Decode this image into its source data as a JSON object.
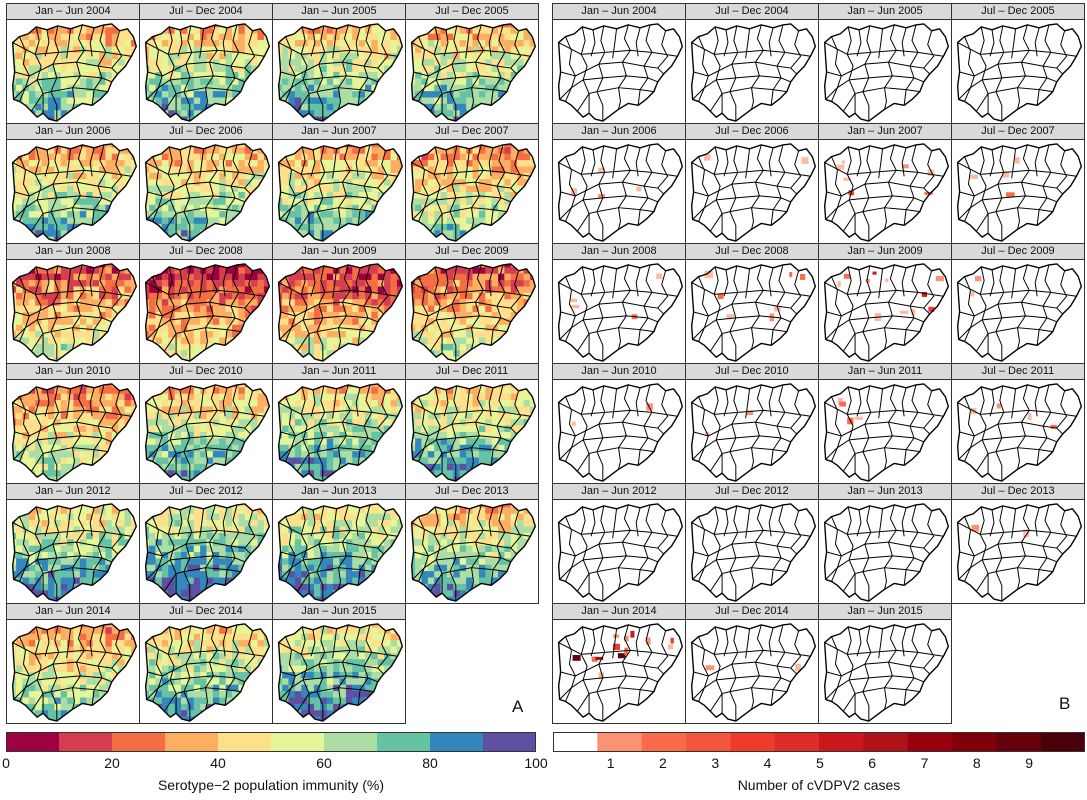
{
  "panel_a": {
    "letter": "A",
    "legend_title": "Serotype−2 population immunity (%)",
    "legend_ticks": [
      "0",
      "20",
      "40",
      "60",
      "80",
      "100"
    ],
    "legend_colors": [
      "#9e0142",
      "#d53e4f",
      "#f46d43",
      "#fdae61",
      "#fee08b",
      "#e6f598",
      "#abdda4",
      "#66c2a5",
      "#3288bd",
      "#5e4fa2"
    ]
  },
  "panel_b": {
    "letter": "B",
    "legend_title": "Number of cVDPV2 cases",
    "legend_ticks": [
      "1",
      "2",
      "3",
      "4",
      "5",
      "6",
      "7",
      "8",
      "9"
    ],
    "legend_colors": [
      "#ffffff",
      "#fc9272",
      "#fb6a4a",
      "#f4553d",
      "#ef3b2c",
      "#de2d26",
      "#cb181d",
      "#b11218",
      "#99000d",
      "#7f0008",
      "#67000d",
      "#4a0008"
    ]
  },
  "periods": [
    "Jan – Jun 2004",
    "Jul – Dec 2004",
    "Jan – Jun 2005",
    "Jul – Dec 2005",
    "Jan – Jun 2006",
    "Jul – Dec 2006",
    "Jan – Jun 2007",
    "Jul – Dec 2007",
    "Jan – Jun 2008",
    "Jul – Dec 2008",
    "Jan – Jun 2009",
    "Jul – Dec 2009",
    "Jan – Jun 2010",
    "Jul – Dec 2010",
    "Jan – Jun 2011",
    "Jul – Dec 2011",
    "Jan – Jun 2012",
    "Jul – Dec 2012",
    "Jan – Jun 2013",
    "Jul – Dec 2013",
    "Jan – Jun 2014",
    "Jul – Dec 2014",
    "Jan – Jun 2015"
  ],
  "chart_data": [
    {
      "type": "heatmap",
      "panel": "A",
      "ylabel": "",
      "legend_label": "Serotype−2 population immunity (%)",
      "scale": [
        0,
        100
      ],
      "immunity_level_by_period": {
        "Jan – Jun 2004": 55,
        "Jul – Dec 2004": 58,
        "Jan – Jun 2005": 60,
        "Jul – Dec 2005": 58,
        "Jan – Jun 2006": 57,
        "Jul – Dec 2006": 55,
        "Jan – Jun 2007": 55,
        "Jul – Dec 2007": 48,
        "Jan – Jun 2008": 38,
        "Jul – Dec 2008": 30,
        "Jan – Jun 2009": 32,
        "Jul – Dec 2009": 38,
        "Jan – Jun 2010": 45,
        "Jul – Dec 2010": 58,
        "Jan – Jun 2011": 62,
        "Jul – Dec 2011": 62,
        "Jan – Jun 2012": 65,
        "Jul – Dec 2012": 70,
        "Jan – Jun 2013": 68,
        "Jul – Dec 2013": 60,
        "Jan – Jun 2014": 52,
        "Jul – Dec 2014": 62,
        "Jan – Jun 2015": 68
      }
    },
    {
      "type": "heatmap",
      "panel": "B",
      "legend_label": "Number of cVDPV2 cases",
      "scale": [
        0,
        9
      ],
      "case_intensity_by_period": {
        "Jan – Jun 2004": 0,
        "Jul – Dec 2004": 0,
        "Jan – Jun 2005": 0,
        "Jul – Dec 2005": 0,
        "Jan – Jun 2006": 2,
        "Jul – Dec 2006": 1,
        "Jan – Jun 2007": 3,
        "Jul – Dec 2007": 2,
        "Jan – Jun 2008": 2,
        "Jul – Dec 2008": 3,
        "Jan – Jun 2009": 5,
        "Jul – Dec 2009": 1,
        "Jan – Jun 2010": 1,
        "Jul – Dec 2010": 1,
        "Jan – Jun 2011": 2,
        "Jul – Dec 2011": 2,
        "Jan – Jun 2012": 0,
        "Jul – Dec 2012": 0,
        "Jan – Jun 2013": 0,
        "Jul – Dec 2013": 1,
        "Jan – Jun 2014": 6,
        "Jul – Dec 2014": 1,
        "Jan – Jun 2015": 0
      }
    }
  ]
}
